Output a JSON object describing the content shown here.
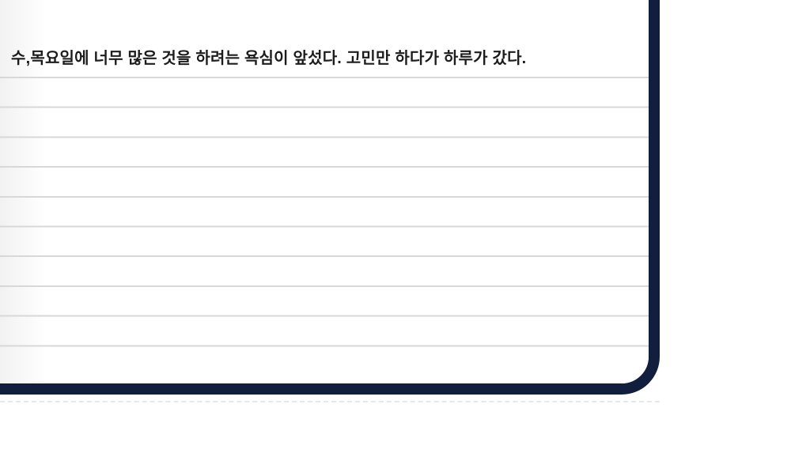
{
  "diary": {
    "entry_text": "수,목요일에 너무 많은 것을 하려는 욕심이 앞섰다. 고민만 하다가 하루가 갔다."
  },
  "notebook": {
    "ruled_line_count": 10
  },
  "colors": {
    "frame_navy": "#111e3e",
    "ruled_line": "#d8d8d8",
    "entry_text": "#1c1c1c",
    "page_background": "#ffffff"
  }
}
